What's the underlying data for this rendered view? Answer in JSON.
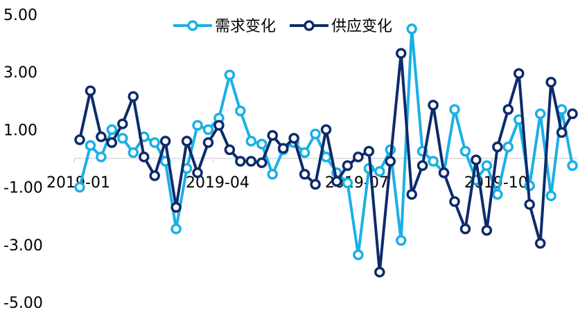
{
  "chart_data": {
    "type": "line",
    "title": "",
    "xlabel": "",
    "ylabel": "",
    "ylim": [
      -5,
      5
    ],
    "yticks": [
      "5.00",
      "3.00",
      "1.00",
      "-1.00",
      "-3.00",
      "-5.00"
    ],
    "xtick_labels": [
      {
        "label": "2019-01",
        "index": 0
      },
      {
        "label": "2019-04",
        "index": 13
      },
      {
        "label": "2019-07",
        "index": 26
      },
      {
        "label": "2019-10",
        "index": 39
      }
    ],
    "legend": {
      "placement": "top-center"
    },
    "grid": false,
    "series": [
      {
        "name": "需求变化",
        "color": "#1AB0E6",
        "values": [
          -1.0,
          0.45,
          0.05,
          1.0,
          0.7,
          0.2,
          0.75,
          0.55,
          -0.1,
          -2.45,
          -0.35,
          1.15,
          1.0,
          1.4,
          2.9,
          1.65,
          0.6,
          0.5,
          -0.55,
          0.3,
          0.55,
          0.2,
          0.85,
          0.05,
          -0.5,
          -0.85,
          -3.35,
          -0.35,
          -0.45,
          0.3,
          -2.85,
          4.5,
          0.25,
          -0.1,
          -0.5,
          1.7,
          0.25,
          -0.75,
          -0.25,
          -1.25,
          0.4,
          1.35,
          -0.95,
          1.55,
          -1.3,
          1.7,
          -0.25
        ]
      },
      {
        "name": "供应变化",
        "color": "#0D2A6B",
        "values": [
          0.65,
          2.35,
          0.75,
          0.55,
          1.2,
          2.15,
          0.05,
          -0.6,
          0.6,
          -1.7,
          0.6,
          -0.5,
          0.55,
          1.15,
          0.3,
          -0.1,
          -0.1,
          -0.15,
          0.8,
          0.35,
          0.7,
          -0.55,
          -0.9,
          1.0,
          -0.8,
          -0.25,
          0.05,
          0.25,
          -3.95,
          -0.1,
          3.65,
          -1.25,
          -0.25,
          1.85,
          -0.5,
          -1.5,
          -2.45,
          -0.05,
          -2.5,
          0.4,
          1.7,
          2.95,
          -1.6,
          -2.95,
          2.65,
          0.9,
          1.55
        ]
      }
    ]
  }
}
